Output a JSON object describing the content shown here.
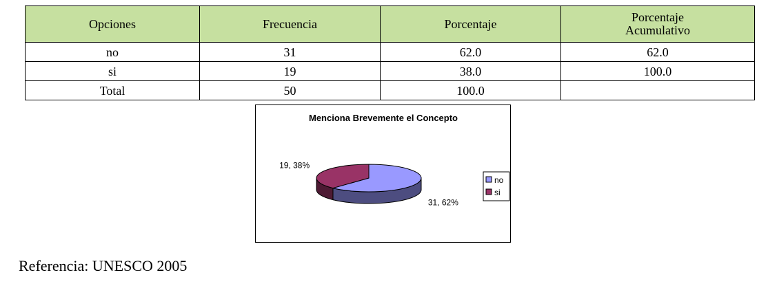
{
  "table": {
    "headers": [
      "Opciones",
      "Frecuencia",
      "Porcentaje",
      "Porcentaje\nAcumulativo"
    ],
    "rows": [
      [
        "no",
        "31",
        "62.0",
        "62.0"
      ],
      [
        "si",
        "19",
        "38.0",
        "100.0"
      ],
      [
        "Total",
        "50",
        "100.0",
        ""
      ]
    ]
  },
  "chart_data": {
    "type": "pie",
    "title": "Menciona Brevemente el Concepto",
    "categories": [
      "no",
      "si"
    ],
    "values": [
      31,
      19
    ],
    "percentages": [
      62,
      38
    ],
    "data_labels": [
      "31, 62%",
      "19, 38%"
    ],
    "colors": [
      "#9999ff",
      "#993366"
    ],
    "legend": [
      "no",
      "si"
    ],
    "legend_position": "right",
    "style": "3d"
  },
  "footer": {
    "reference": "Referencia: UNESCO 2005"
  }
}
